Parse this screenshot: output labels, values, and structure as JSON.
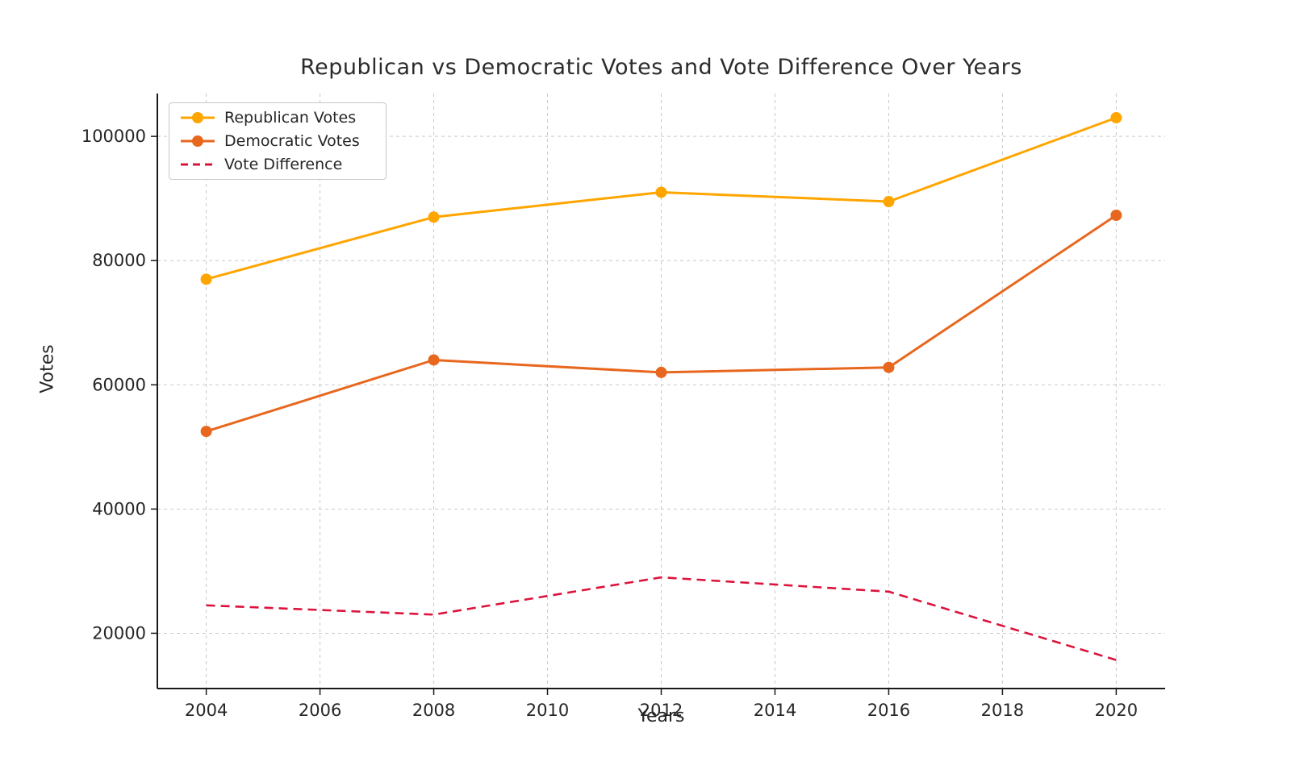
{
  "chart_data": {
    "type": "line",
    "title": "Republican vs Democratic Votes and Vote Difference Over Years",
    "xlabel": "Years",
    "ylabel": "Votes",
    "x": [
      2004,
      2008,
      2012,
      2016,
      2020
    ],
    "series": [
      {
        "name": "Republican Votes",
        "values": [
          77000,
          87000,
          91000,
          89500,
          103000
        ],
        "color": "#FFA500",
        "style": "solid",
        "marker": "circle"
      },
      {
        "name": "Democratic Votes",
        "values": [
          52500,
          64000,
          62000,
          62800,
          87300
        ],
        "color": "#E8671E",
        "style": "solid",
        "marker": "circle"
      },
      {
        "name": "Vote Difference",
        "values": [
          24500,
          23000,
          29000,
          26700,
          15700
        ],
        "color": "#DC143C",
        "style": "dashed",
        "marker": "none"
      }
    ],
    "xticks": [
      2004,
      2006,
      2008,
      2010,
      2012,
      2014,
      2016,
      2018,
      2020
    ],
    "yticks": [
      20000,
      40000,
      60000,
      80000,
      100000
    ],
    "xlim": [
      2003.14,
      2020.86
    ],
    "ylim": [
      11100,
      106900
    ],
    "grid": true,
    "legend_position": "upper left",
    "grid_color": "#c9c9c9",
    "background_color": "#ffffff"
  }
}
